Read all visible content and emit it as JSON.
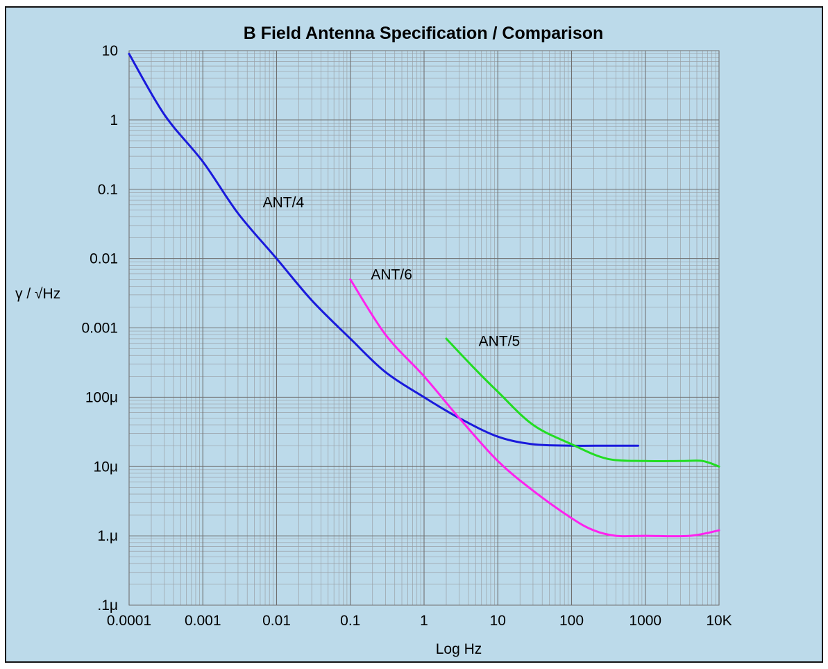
{
  "chart_data": {
    "type": "line",
    "title": "B Field Antenna Specification / Comparison",
    "xlabel": "Log Hz",
    "ylabel": "γ / √Hz",
    "x_scale": "log",
    "y_scale": "log",
    "xlim": [
      0.0001,
      10000
    ],
    "ylim": [
      1e-07,
      10
    ],
    "x_ticks": [
      {
        "value": 0.0001,
        "label": "0.0001"
      },
      {
        "value": 0.001,
        "label": "0.001"
      },
      {
        "value": 0.01,
        "label": "0.01"
      },
      {
        "value": 0.1,
        "label": "0.1"
      },
      {
        "value": 1,
        "label": "1"
      },
      {
        "value": 10,
        "label": "10"
      },
      {
        "value": 100,
        "label": "100"
      },
      {
        "value": 1000,
        "label": "1000"
      },
      {
        "value": 10000,
        "label": "10K"
      }
    ],
    "y_ticks": [
      {
        "value": 10,
        "label": "10"
      },
      {
        "value": 1,
        "label": "1"
      },
      {
        "value": 0.1,
        "label": "0.1"
      },
      {
        "value": 0.01,
        "label": "0.01"
      },
      {
        "value": 0.001,
        "label": "0.001"
      },
      {
        "value": 0.0001,
        "label": "100μ"
      },
      {
        "value": 1e-05,
        "label": "10μ"
      },
      {
        "value": 1e-06,
        "label": "1.μ"
      },
      {
        "value": 1e-07,
        "label": ".1μ"
      }
    ],
    "grid": true,
    "series": [
      {
        "name": "ANT/4",
        "color": "#1a1adc",
        "x": [
          0.0001,
          0.0003,
          0.001,
          0.003,
          0.01,
          0.03,
          0.1,
          0.3,
          1,
          3,
          10,
          30,
          100,
          300,
          800
        ],
        "y": [
          9,
          1.2,
          0.25,
          0.045,
          0.01,
          0.0025,
          0.0007,
          0.00023,
          0.0001,
          5e-05,
          2.7e-05,
          2.1e-05,
          2e-05,
          2e-05,
          2e-05
        ]
      },
      {
        "name": "ANT/6",
        "color": "#ff22ee",
        "x": [
          0.1,
          0.3,
          1,
          3,
          10,
          30,
          100,
          200,
          400,
          1000,
          4000,
          10000
        ],
        "y": [
          0.005,
          0.0008,
          0.0002,
          5e-05,
          1.2e-05,
          4.5e-06,
          1.8e-06,
          1.2e-06,
          1e-06,
          1e-06,
          1e-06,
          1.2e-06
        ]
      },
      {
        "name": "ANT/5",
        "color": "#22dd22",
        "x": [
          2,
          5,
          10,
          30,
          100,
          300,
          1000,
          3000,
          6000,
          10000
        ],
        "y": [
          0.0007,
          0.00025,
          0.00012,
          4e-05,
          2.1e-05,
          1.3e-05,
          1.2e-05,
          1.2e-05,
          1.2e-05,
          1e-05
        ]
      }
    ],
    "annotations": [
      {
        "text": "ANT/4",
        "x": 0.0065,
        "y": 0.055
      },
      {
        "text": "ANT/6",
        "x": 0.19,
        "y": 0.005
      },
      {
        "text": "ANT/5",
        "x": 5.5,
        "y": 0.00055
      }
    ]
  }
}
